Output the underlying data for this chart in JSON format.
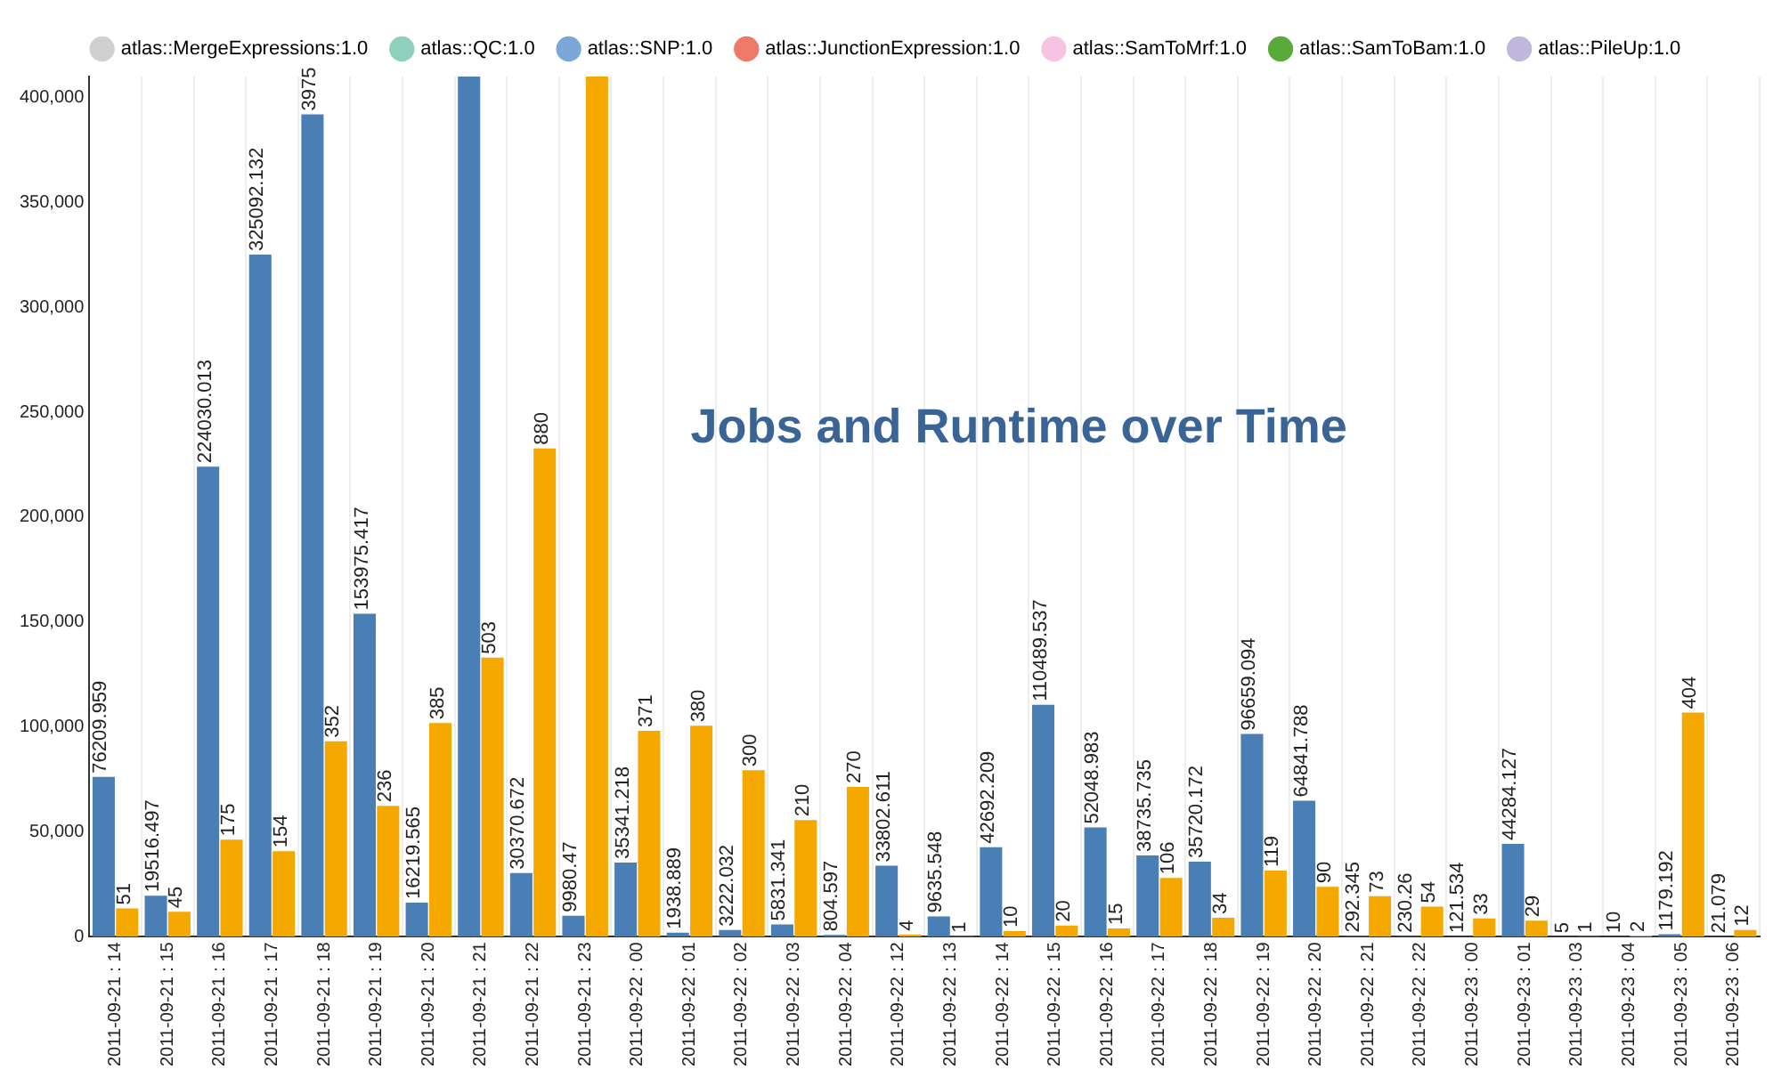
{
  "chart_data": {
    "type": "bar",
    "title": "Jobs and Runtime over Time",
    "categories": [
      "2011-09-21 : 14",
      "2011-09-21 : 15",
      "2011-09-21 : 16",
      "2011-09-21 : 17",
      "2011-09-21 : 18",
      "2011-09-21 : 19",
      "2011-09-21 : 20",
      "2011-09-21 : 21",
      "2011-09-21 : 22",
      "2011-09-21 : 23",
      "2011-09-22 : 00",
      "2011-09-22 : 01",
      "2011-09-22 : 02",
      "2011-09-22 : 03",
      "2011-09-22 : 04",
      "2011-09-22 : 12",
      "2011-09-22 : 13",
      "2011-09-22 : 14",
      "2011-09-22 : 15",
      "2011-09-22 : 16",
      "2011-09-22 : 17",
      "2011-09-22 : 18",
      "2011-09-22 : 19",
      "2011-09-22 : 20",
      "2011-09-22 : 21",
      "2011-09-22 : 22",
      "2011-09-23 : 00",
      "2011-09-23 : 01",
      "2011-09-23 : 03",
      "2011-09-23 : 04",
      "2011-09-23 : 05",
      "2011-09-23 : 06"
    ],
    "series": [
      {
        "color": "#4a7fb5",
        "values": [
          76209.959,
          19516.497,
          224030.013,
          325092.132,
          392000,
          153975.417,
          16219.565,
          410000,
          30370.672,
          9980.47,
          35341.218,
          1938.889,
          3222.032,
          5831.341,
          804.597,
          33802.611,
          9635.548,
          42692.209,
          110489.537,
          52048.983,
          38735.735,
          35720.172,
          96659.094,
          64841.788,
          292.345,
          230.26,
          121.534,
          44284.127,
          5,
          10,
          1179.192,
          21.079
        ],
        "value_labels": [
          "76209.959",
          "19516.497",
          "224030.013",
          "325092.132",
          null,
          "153975.417",
          "16219.565",
          null,
          "30370.672",
          "9980.47",
          "35341.218",
          "1938.889",
          "3222.032",
          "5831.341",
          "804.597",
          "33802.611",
          "9635.548",
          "42692.209",
          "110489.537",
          "52048.983",
          "38735.735",
          "35720.172",
          "96659.094",
          "64841.788",
          "292.345",
          "230.26",
          "121.534",
          "44284.127",
          "5",
          "10",
          "1179.192",
          "21.079"
        ]
      },
      {
        "color": "#f5a800",
        "axis": "y2",
        "values": [
          51,
          45,
          175,
          154,
          352,
          236,
          385,
          503,
          880,
          1550,
          371,
          380,
          300,
          210,
          270,
          4,
          1,
          10,
          20,
          15,
          106,
          34,
          119,
          90,
          73,
          54,
          33,
          29,
          1,
          2,
          404,
          12
        ],
        "value_labels": [
          "51",
          "45",
          "175",
          "154",
          "352",
          "236",
          "385",
          "503",
          "880",
          null,
          "371",
          "380",
          "300",
          "210",
          "270",
          "4",
          "1",
          "10",
          "20",
          "15",
          "106",
          "34",
          "119",
          "90",
          "73",
          "54",
          "33",
          "29",
          "1",
          "2",
          "404",
          "12"
        ]
      },
      {
        "name": "atlas::MergeExpressions:1.0",
        "color": "#d0d0d0",
        "values": [
          null,
          null,
          null,
          null,
          null,
          null,
          null,
          null,
          null,
          null,
          null,
          null,
          null,
          null,
          null,
          null,
          null,
          null,
          null,
          null,
          null,
          null,
          null,
          null,
          null,
          null,
          null,
          null,
          null,
          null,
          null,
          null
        ]
      },
      {
        "name": "atlas::QC:1.0",
        "color": "#8fd0bc",
        "values": [
          null,
          null,
          null,
          null,
          null,
          null,
          null,
          null,
          null,
          null,
          null,
          null,
          null,
          null,
          null,
          null,
          null,
          null,
          null,
          null,
          null,
          null,
          null,
          null,
          null,
          null,
          null,
          null,
          null,
          null,
          null,
          null
        ]
      },
      {
        "name": "atlas::SNP:1.0",
        "color": "#7ba7d8",
        "values": [
          null,
          null,
          null,
          null,
          null,
          null,
          null,
          null,
          null,
          null,
          null,
          null,
          null,
          null,
          null,
          null,
          null,
          null,
          null,
          null,
          null,
          null,
          null,
          null,
          null,
          null,
          null,
          null,
          null,
          null,
          null,
          null
        ]
      },
      {
        "name": "atlas::JunctionExpression:1.0",
        "color": "#ef7a6a",
        "values": [
          null,
          null,
          null,
          null,
          null,
          null,
          null,
          null,
          null,
          null,
          null,
          null,
          null,
          null,
          null,
          null,
          null,
          null,
          null,
          null,
          null,
          null,
          null,
          null,
          null,
          null,
          null,
          null,
          null,
          null,
          null,
          null
        ]
      },
      {
        "name": "atlas::SamToMrf:1.0",
        "color": "#f6c4e0",
        "values": [
          null,
          null,
          null,
          null,
          null,
          null,
          null,
          null,
          null,
          null,
          null,
          null,
          null,
          null,
          null,
          null,
          null,
          null,
          null,
          null,
          null,
          null,
          null,
          null,
          null,
          null,
          null,
          null,
          null,
          null,
          null,
          null
        ]
      },
      {
        "name": "atlas::SamToBam:1.0",
        "color": "#5aaa3a",
        "values": [
          null,
          null,
          null,
          null,
          null,
          null,
          null,
          null,
          null,
          null,
          null,
          null,
          null,
          null,
          null,
          null,
          null,
          null,
          null,
          null,
          null,
          null,
          null,
          null,
          null,
          null,
          null,
          null,
          null,
          null,
          null,
          null
        ]
      },
      {
        "name": "atlas::PileUp:1.0",
        "color": "#c0b8dc",
        "values": [
          null,
          null,
          null,
          null,
          null,
          null,
          null,
          null,
          null,
          null,
          null,
          null,
          null,
          null,
          null,
          null,
          null,
          null,
          null,
          null,
          null,
          null,
          null,
          null,
          null,
          null,
          null,
          null,
          null,
          null,
          null,
          null
        ]
      }
    ],
    "annotations": [
      {
        "text": "3975",
        "x": "2011-09-21 : 18",
        "y": 392000
      }
    ],
    "ylim": [
      0,
      410000
    ],
    "yticks": [
      {
        "value": 0,
        "label": "0"
      },
      {
        "value": 50000,
        "label": "50,000"
      },
      {
        "value": 100000,
        "label": "100,000"
      },
      {
        "value": 150000,
        "label": "150,000"
      },
      {
        "value": 200000,
        "label": "200,000"
      },
      {
        "value": 250000,
        "label": "250,000"
      },
      {
        "value": 300000,
        "label": "300,000"
      },
      {
        "value": 350000,
        "label": "350,000"
      },
      {
        "value": 400000,
        "label": "400,000"
      }
    ],
    "y2lim": [
      0,
      1550
    ],
    "grid": "x",
    "legend": "top"
  }
}
